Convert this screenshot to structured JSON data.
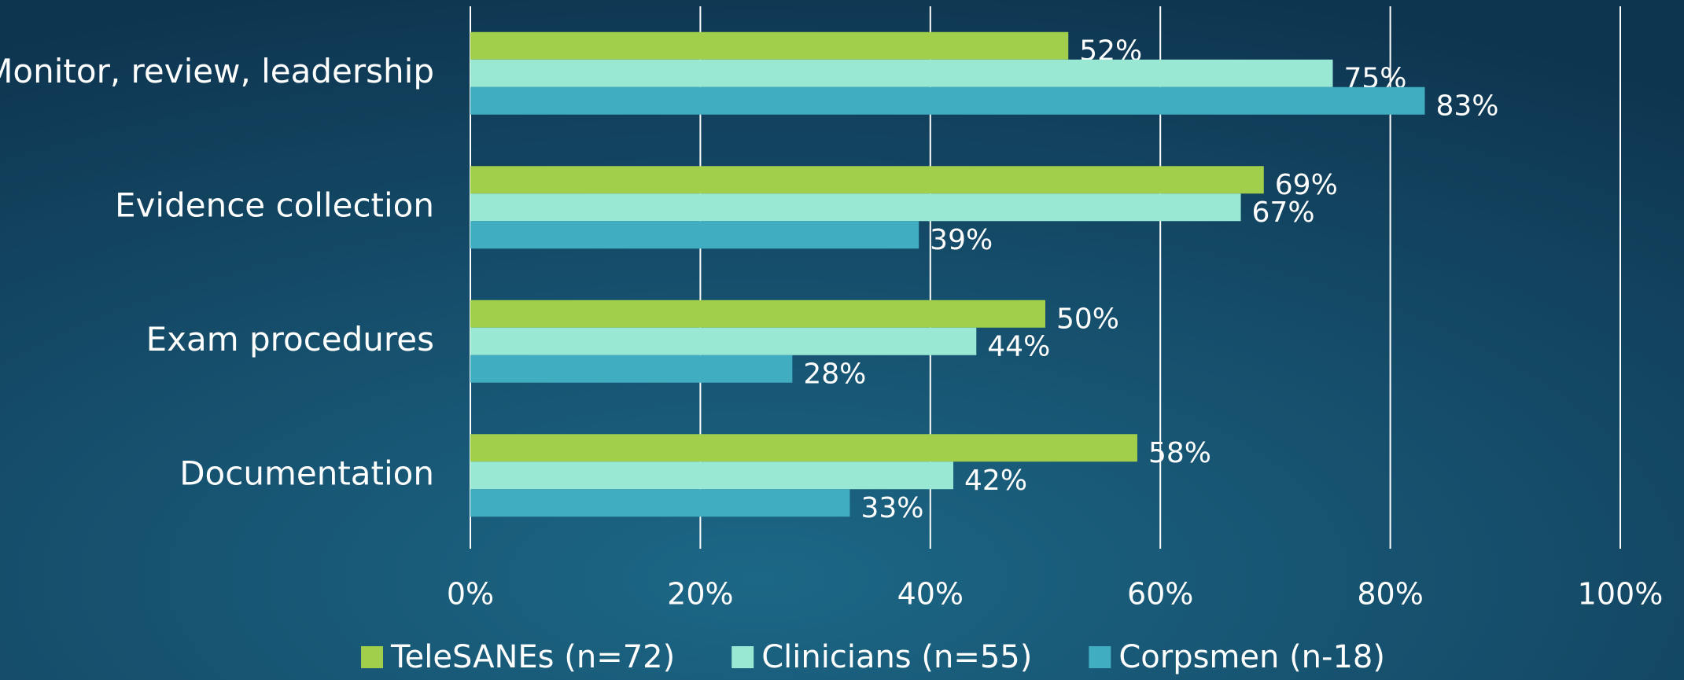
{
  "chart_data": {
    "type": "bar",
    "orientation": "horizontal",
    "categories": [
      "Monitor, review, leadership",
      "Evidence collection",
      "Exam procedures",
      "Documentation"
    ],
    "series": [
      {
        "name": "TeleSANEs (n=72)",
        "color": "#a1cf4b",
        "values": [
          52,
          69,
          50,
          58
        ],
        "value_labels": [
          "52%",
          "69%",
          "50%",
          "58%"
        ]
      },
      {
        "name": "Clinicians (n=55)",
        "color": "#98e8d4",
        "values": [
          75,
          67,
          44,
          42
        ],
        "value_labels": [
          "75%",
          "67%",
          "44%",
          "42%"
        ]
      },
      {
        "name": "Corpsmen (n-18)",
        "color": "#40adc0",
        "values": [
          83,
          39,
          28,
          33
        ],
        "value_labels": [
          "83%",
          "39%",
          "28%",
          "33%"
        ]
      }
    ],
    "xlim": [
      0,
      100
    ],
    "xticks": [
      {
        "value": 0,
        "label": "0%"
      },
      {
        "value": 20,
        "label": "20%"
      },
      {
        "value": 40,
        "label": "40%"
      },
      {
        "value": 60,
        "label": "60%"
      },
      {
        "value": 80,
        "label": "80%"
      },
      {
        "value": 100,
        "label": "100%"
      }
    ],
    "grid": true,
    "legend": "bottom"
  }
}
